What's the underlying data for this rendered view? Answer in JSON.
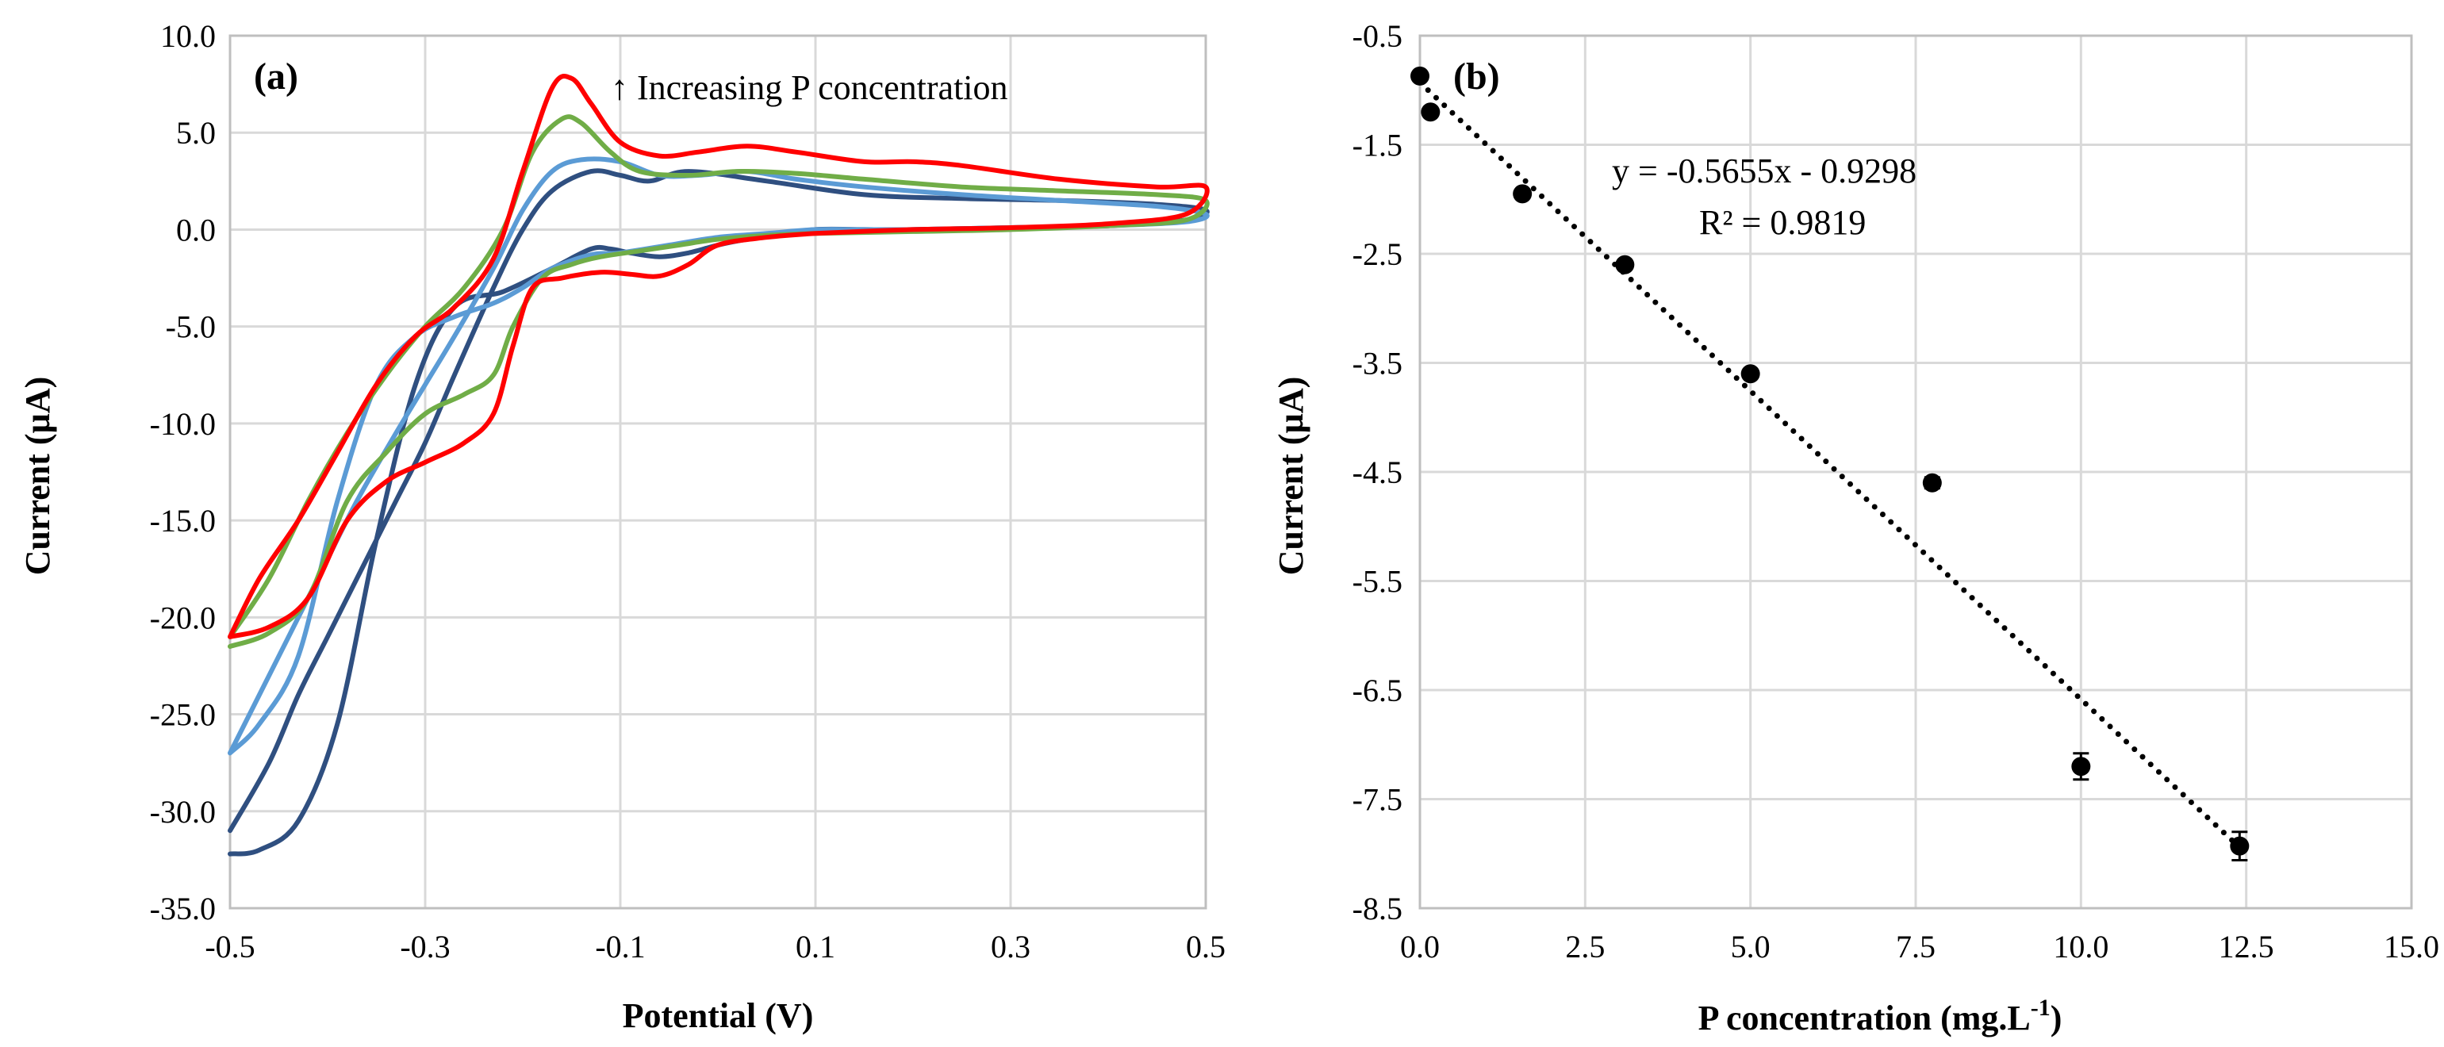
{
  "chart_data": [
    {
      "type": "line",
      "panel_label": "(a)",
      "xlabel": "Potential (V)",
      "ylabel": "Current (µA)",
      "xlim": [
        -0.5,
        0.5
      ],
      "ylim": [
        -35.0,
        10.0
      ],
      "xticks": [
        "-0.5",
        "-0.3",
        "-0.1",
        "0.1",
        "0.3",
        "0.5"
      ],
      "yticks": [
        "10.0",
        "5.0",
        "0.0",
        "-5.0",
        "-10.0",
        "-15.0",
        "-20.0",
        "-25.0",
        "-30.0",
        "-35.0"
      ],
      "annotation": "↑ Increasing P concentration",
      "grid": true,
      "series": [
        {
          "name": "dark blue",
          "color": "#2f4f80",
          "x": [
            -0.5,
            -0.47,
            -0.43,
            -0.39,
            -0.35,
            -0.31,
            -0.27,
            -0.22,
            -0.17,
            -0.13,
            -0.11,
            -0.09,
            -0.06,
            -0.03,
            0.0,
            0.03,
            0.06,
            0.1,
            0.15,
            0.2,
            0.3,
            0.4,
            0.48,
            0.5,
            0.45,
            0.35,
            0.25,
            0.15,
            0.05,
            -0.03,
            -0.07,
            -0.1,
            -0.13,
            -0.17,
            -0.2,
            -0.23,
            -0.27,
            -0.3,
            -0.33,
            -0.37,
            -0.4,
            -0.43,
            -0.46,
            -0.5
          ],
          "y": [
            -32.2,
            -32.0,
            -30.5,
            -25.5,
            -16.0,
            -8.0,
            -4.0,
            -3.2,
            -2.0,
            -1.0,
            -1.0,
            -1.2,
            -1.4,
            -1.2,
            -0.8,
            -0.5,
            -0.3,
            0.0,
            0.0,
            0.0,
            0.1,
            0.2,
            0.5,
            1.0,
            1.3,
            1.5,
            1.6,
            1.8,
            2.5,
            3.0,
            2.5,
            2.8,
            3.0,
            2.0,
            0.0,
            -3.0,
            -7.5,
            -11.0,
            -14.0,
            -18.0,
            -21.0,
            -24.0,
            -27.5,
            -31.0
          ]
        },
        {
          "name": "light blue",
          "color": "#5b9bd5",
          "x": [
            -0.5,
            -0.47,
            -0.43,
            -0.39,
            -0.35,
            -0.31,
            -0.27,
            -0.23,
            -0.2,
            -0.17,
            -0.13,
            -0.1,
            -0.05,
            0.0,
            0.05,
            0.1,
            0.15,
            0.2,
            0.3,
            0.4,
            0.48,
            0.5,
            0.45,
            0.35,
            0.25,
            0.15,
            0.08,
            0.03,
            -0.02,
            -0.06,
            -0.1,
            -0.14,
            -0.17,
            -0.2,
            -0.23,
            -0.27,
            -0.3,
            -0.33,
            -0.37,
            -0.41,
            -0.44,
            -0.47,
            -0.5
          ],
          "y": [
            -27.0,
            -25.5,
            -22.0,
            -14.0,
            -8.0,
            -5.5,
            -4.5,
            -3.8,
            -3.0,
            -2.0,
            -1.3,
            -1.2,
            -0.8,
            -0.4,
            -0.2,
            0.0,
            0.0,
            0.0,
            0.1,
            0.2,
            0.4,
            0.8,
            1.2,
            1.5,
            1.8,
            2.2,
            2.6,
            3.0,
            2.8,
            2.8,
            3.5,
            3.6,
            3.0,
            1.0,
            -2.0,
            -5.5,
            -8.0,
            -10.5,
            -14.0,
            -18.0,
            -21.0,
            -24.0,
            -27.0
          ]
        },
        {
          "name": "green",
          "color": "#70ad47",
          "x": [
            -0.5,
            -0.46,
            -0.42,
            -0.38,
            -0.34,
            -0.3,
            -0.26,
            -0.23,
            -0.21,
            -0.18,
            -0.15,
            -0.12,
            -0.08,
            -0.04,
            0.0,
            0.05,
            0.1,
            0.2,
            0.3,
            0.4,
            0.48,
            0.5,
            0.45,
            0.35,
            0.25,
            0.15,
            0.08,
            0.02,
            -0.03,
            -0.08,
            -0.11,
            -0.14,
            -0.16,
            -0.19,
            -0.22,
            -0.26,
            -0.3,
            -0.34,
            -0.38,
            -0.42,
            -0.46,
            -0.5
          ],
          "y": [
            -21.5,
            -20.8,
            -19.0,
            -14.0,
            -11.5,
            -9.5,
            -8.5,
            -7.5,
            -5.0,
            -2.5,
            -1.8,
            -1.4,
            -1.1,
            -0.8,
            -0.5,
            -0.3,
            -0.2,
            -0.1,
            0.0,
            0.2,
            0.5,
            1.5,
            1.8,
            2.0,
            2.2,
            2.6,
            2.9,
            3.0,
            2.8,
            3.0,
            4.0,
            5.5,
            5.7,
            4.0,
            0.0,
            -3.0,
            -5.0,
            -7.5,
            -10.5,
            -14.0,
            -18.0,
            -21.0
          ]
        },
        {
          "name": "red",
          "color": "#ff0000",
          "x": [
            -0.5,
            -0.46,
            -0.42,
            -0.38,
            -0.34,
            -0.3,
            -0.26,
            -0.23,
            -0.21,
            -0.19,
            -0.16,
            -0.12,
            -0.09,
            -0.06,
            -0.03,
            0.0,
            0.05,
            0.1,
            0.2,
            0.3,
            0.4,
            0.48,
            0.5,
            0.45,
            0.35,
            0.25,
            0.2,
            0.15,
            0.08,
            0.03,
            -0.02,
            -0.06,
            -0.1,
            -0.13,
            -0.15,
            -0.17,
            -0.2,
            -0.23,
            -0.27,
            -0.31,
            -0.35,
            -0.39,
            -0.43,
            -0.47,
            -0.5
          ],
          "y": [
            -21.0,
            -20.5,
            -19.0,
            -15.0,
            -13.0,
            -12.0,
            -11.0,
            -9.5,
            -6.0,
            -3.0,
            -2.5,
            -2.2,
            -2.3,
            -2.4,
            -1.8,
            -0.8,
            -0.4,
            -0.2,
            0.0,
            0.1,
            0.3,
            0.8,
            2.2,
            2.2,
            2.6,
            3.3,
            3.5,
            3.5,
            4.0,
            4.3,
            4.0,
            3.8,
            4.5,
            6.5,
            7.8,
            7.3,
            3.0,
            -1.5,
            -4.0,
            -5.5,
            -8.0,
            -11.5,
            -15.0,
            -18.0,
            -21.0
          ]
        }
      ]
    },
    {
      "type": "scatter",
      "panel_label": "(b)",
      "xlabel_main": "P concentration  (mg.L",
      "xlabel_sup": "-1",
      "xlabel_end": ")",
      "ylabel": "Current (µA)",
      "xlim": [
        0.0,
        15.0
      ],
      "ylim": [
        -8.5,
        -0.5
      ],
      "xticks": [
        "0.0",
        "2.5",
        "5.0",
        "7.5",
        "10.0",
        "12.5",
        "15.0"
      ],
      "yticks": [
        "-0.5",
        "-1.5",
        "-2.5",
        "-3.5",
        "-4.5",
        "-5.5",
        "-6.5",
        "-7.5",
        "-8.5"
      ],
      "grid": true,
      "points": {
        "x": [
          0.0,
          0.16,
          1.55,
          3.1,
          5.0,
          7.75,
          10.0,
          12.4
        ],
        "y": [
          -0.87,
          -1.2,
          -1.95,
          -2.6,
          -3.6,
          -4.6,
          -7.2,
          -7.93
        ],
        "err": [
          0.0,
          0.0,
          0.0,
          0.0,
          0.0,
          0.05,
          0.12,
          0.13
        ]
      },
      "trendline": {
        "slope": -0.5655,
        "intercept": -0.9298,
        "x_range": [
          0.0,
          12.4
        ],
        "style": "dotted"
      },
      "equation": "y = -0.5655x - 0.9298",
      "r2_text": "R² = 0.9819"
    }
  ]
}
